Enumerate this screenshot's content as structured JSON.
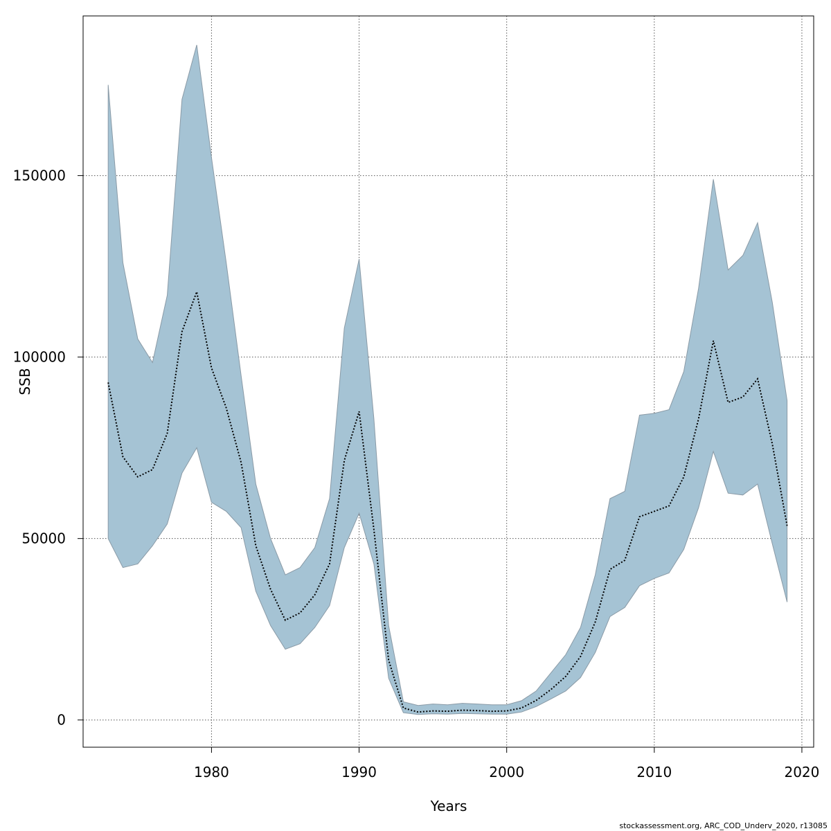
{
  "chart_data": {
    "type": "area",
    "title": "",
    "xlabel": "Years",
    "ylabel": "SSB",
    "xlim": [
      1971.3,
      2020.8
    ],
    "ylim": [
      -7500,
      194000
    ],
    "x_ticks": [
      1980,
      1990,
      2000,
      2010,
      2020
    ],
    "y_ticks": [
      0,
      50000,
      100000,
      150000
    ],
    "grid": true,
    "band_color": "#A5C3D4",
    "band_edge_color": "#8A9AA6",
    "line_color": "#000000",
    "line_style": "dotted",
    "x": [
      1973,
      1974,
      1975,
      1976,
      1977,
      1978,
      1979,
      1980,
      1981,
      1982,
      1983,
      1984,
      1985,
      1986,
      1987,
      1988,
      1989,
      1990,
      1991,
      1992,
      1993,
      1994,
      1995,
      1996,
      1997,
      1998,
      1999,
      2000,
      2001,
      2002,
      2003,
      2004,
      2005,
      2006,
      2007,
      2008,
      2009,
      2010,
      2011,
      2012,
      2013,
      2014,
      2015,
      2016,
      2017,
      2018,
      2019
    ],
    "upper": [
      175000,
      126000,
      105000,
      98500,
      117000,
      171000,
      186000,
      155000,
      126000,
      95000,
      65000,
      50000,
      40000,
      42000,
      47500,
      61000,
      108000,
      127000,
      83000,
      26000,
      5000,
      4000,
      4400,
      4200,
      4600,
      4400,
      4200,
      4200,
      5300,
      8000,
      13000,
      18000,
      25500,
      40000,
      61000,
      63000,
      84000,
      84500,
      85500,
      96000,
      119000,
      149000,
      124000,
      128000,
      137000,
      115000,
      88000
    ],
    "series": [
      {
        "values": [
          93000,
          72500,
          67000,
          69000,
          79000,
          107000,
          118000,
          97000,
          86000,
          71000,
          48000,
          36000,
          27500,
          29500,
          34500,
          43000,
          71500,
          85000,
          52500,
          16500,
          3300,
          2200,
          2500,
          2400,
          2700,
          2600,
          2400,
          2500,
          3300,
          5400,
          8400,
          12000,
          17500,
          27000,
          41500,
          44000,
          56000,
          57500,
          59000,
          67000,
          83000,
          104500,
          87500,
          89000,
          94000,
          76000,
          53500
        ]
      }
    ],
    "lower": [
      50000,
      42000,
      43000,
      48000,
      54000,
      68000,
      75000,
      60000,
      57500,
      53000,
      35500,
      26000,
      19500,
      21000,
      25500,
      31500,
      47500,
      57000,
      43000,
      11500,
      2000,
      1500,
      1700,
      1600,
      1800,
      1700,
      1600,
      1600,
      2200,
      3700,
      5800,
      8000,
      11700,
      18600,
      28500,
      31000,
      37000,
      39000,
      40500,
      47000,
      58500,
      74000,
      62500,
      62000,
      65000,
      48500,
      32500
    ],
    "footer_note": "stockassessment.org, ARC_COD_Underv_2020, r13085"
  }
}
